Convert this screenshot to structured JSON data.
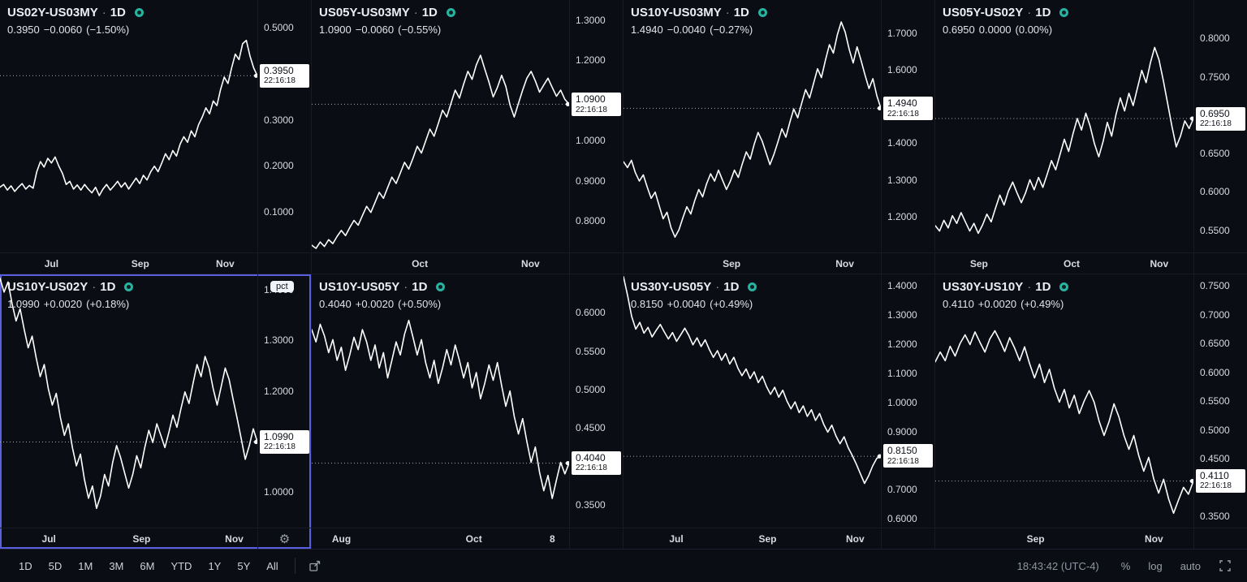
{
  "toolbar": {
    "ranges": [
      "1D",
      "5D",
      "1M",
      "3M",
      "6M",
      "YTD",
      "1Y",
      "5Y",
      "All"
    ],
    "clock": "18:43:42 (UTC-4)",
    "percent": "%",
    "log": "log",
    "auto": "auto"
  },
  "colors": {
    "background": "#0b0d14",
    "line": "#ffffff",
    "dashed_price_line": "#a9acb3",
    "panel_border": "#181b24",
    "selected_border": "#5a5ee0",
    "status_dot": "#27b3a2",
    "price_label_bg": "#ffffff",
    "price_label_text": "#10131a",
    "axis_text": "#d8dbe0"
  },
  "chart_data": [
    {
      "type": "line",
      "symbol": "US02Y-US03MY",
      "interval": "1D",
      "last_value": "0.3950",
      "change": "−0.0060",
      "change_pct": "(−1.50%)",
      "price_label": {
        "price": "0.3950",
        "time": "22:16:18"
      },
      "selected": false,
      "y_axis": {
        "min": 0.01,
        "max": 0.56,
        "ticks": [
          {
            "value": 0.5,
            "label": "0.5000"
          },
          {
            "value": 0.3,
            "label": "0.3000"
          },
          {
            "value": 0.2,
            "label": "0.2000"
          },
          {
            "value": 0.1,
            "label": "0.1000"
          }
        ]
      },
      "x_ticks": [
        {
          "pos": 0.2,
          "label": "Jul"
        },
        {
          "pos": 0.545,
          "label": "Sep"
        },
        {
          "pos": 0.875,
          "label": "Nov"
        }
      ],
      "series": [
        0.152,
        0.158,
        0.146,
        0.155,
        0.143,
        0.152,
        0.16,
        0.148,
        0.156,
        0.15,
        0.186,
        0.208,
        0.196,
        0.215,
        0.205,
        0.218,
        0.198,
        0.182,
        0.158,
        0.165,
        0.148,
        0.157,
        0.146,
        0.158,
        0.148,
        0.14,
        0.152,
        0.134,
        0.148,
        0.158,
        0.146,
        0.155,
        0.165,
        0.152,
        0.162,
        0.148,
        0.16,
        0.172,
        0.16,
        0.178,
        0.168,
        0.186,
        0.198,
        0.186,
        0.205,
        0.225,
        0.212,
        0.232,
        0.22,
        0.246,
        0.262,
        0.25,
        0.275,
        0.262,
        0.288,
        0.305,
        0.325,
        0.312,
        0.34,
        0.33,
        0.365,
        0.392,
        0.378,
        0.412,
        0.442,
        0.43,
        0.465,
        0.472,
        0.438,
        0.412,
        0.395
      ]
    },
    {
      "type": "line",
      "symbol": "US05Y-US03MY",
      "interval": "1D",
      "last_value": "1.0900",
      "change": "−0.0060",
      "change_pct": "(−0.55%)",
      "price_label": {
        "price": "1.0900",
        "time": "22:16:18"
      },
      "selected": false,
      "y_axis": {
        "min": 0.72,
        "max": 1.35,
        "ticks": [
          {
            "value": 1.3,
            "label": "1.3000"
          },
          {
            "value": 1.2,
            "label": "1.2000"
          },
          {
            "value": 1.0,
            "label": "1.0000"
          },
          {
            "value": 0.9,
            "label": "0.9000"
          },
          {
            "value": 0.8,
            "label": "0.8000"
          }
        ]
      },
      "x_ticks": [
        {
          "pos": 0.42,
          "label": "Oct"
        },
        {
          "pos": 0.85,
          "label": "Nov"
        }
      ],
      "series": [
        0.738,
        0.73,
        0.746,
        0.735,
        0.752,
        0.742,
        0.76,
        0.775,
        0.762,
        0.782,
        0.8,
        0.788,
        0.812,
        0.835,
        0.82,
        0.845,
        0.87,
        0.855,
        0.882,
        0.908,
        0.892,
        0.918,
        0.945,
        0.928,
        0.955,
        0.985,
        0.968,
        0.998,
        1.028,
        1.01,
        1.042,
        1.075,
        1.058,
        1.092,
        1.125,
        1.105,
        1.14,
        1.172,
        1.152,
        1.188,
        1.212,
        1.178,
        1.145,
        1.108,
        1.132,
        1.162,
        1.135,
        1.088,
        1.058,
        1.092,
        1.125,
        1.155,
        1.172,
        1.148,
        1.12,
        1.138,
        1.155,
        1.132,
        1.11,
        1.125,
        1.102,
        1.09
      ]
    },
    {
      "type": "line",
      "symbol": "US10Y-US03MY",
      "interval": "1D",
      "last_value": "1.4940",
      "change": "−0.0040",
      "change_pct": "(−0.27%)",
      "price_label": {
        "price": "1.4940",
        "time": "22:16:18"
      },
      "selected": false,
      "y_axis": {
        "min": 1.1,
        "max": 1.79,
        "ticks": [
          {
            "value": 1.7,
            "label": "1.7000"
          },
          {
            "value": 1.6,
            "label": "1.6000"
          },
          {
            "value": 1.4,
            "label": "1.4000"
          },
          {
            "value": 1.3,
            "label": "1.3000"
          },
          {
            "value": 1.2,
            "label": "1.2000"
          }
        ]
      },
      "x_ticks": [
        {
          "pos": 0.42,
          "label": "Sep"
        },
        {
          "pos": 0.86,
          "label": "Nov"
        }
      ],
      "series": [
        1.348,
        1.332,
        1.352,
        1.318,
        1.295,
        1.312,
        1.278,
        1.248,
        1.265,
        1.228,
        1.192,
        1.21,
        1.168,
        1.142,
        1.162,
        1.195,
        1.225,
        1.205,
        1.242,
        1.272,
        1.252,
        1.288,
        1.315,
        1.295,
        1.325,
        1.298,
        1.272,
        1.295,
        1.325,
        1.305,
        1.342,
        1.375,
        1.355,
        1.395,
        1.428,
        1.405,
        1.372,
        1.34,
        1.368,
        1.402,
        1.438,
        1.415,
        1.455,
        1.492,
        1.468,
        1.508,
        1.545,
        1.522,
        1.562,
        1.602,
        1.578,
        1.625,
        1.668,
        1.645,
        1.695,
        1.73,
        1.702,
        1.655,
        1.618,
        1.662,
        1.625,
        1.585,
        1.548,
        1.575,
        1.528,
        1.494
      ]
    },
    {
      "type": "line",
      "symbol": "US05Y-US02Y",
      "interval": "1D",
      "last_value": "0.6950",
      "change": "0.0000",
      "change_pct": "(0.00%)",
      "price_label": {
        "price": "0.6950",
        "time": "22:16:18"
      },
      "selected": false,
      "y_axis": {
        "min": 0.52,
        "max": 0.85,
        "ticks": [
          {
            "value": 0.8,
            "label": "0.8000"
          },
          {
            "value": 0.75,
            "label": "0.7500"
          },
          {
            "value": 0.65,
            "label": "0.6500"
          },
          {
            "value": 0.6,
            "label": "0.6000"
          },
          {
            "value": 0.55,
            "label": "0.5500"
          }
        ]
      },
      "x_ticks": [
        {
          "pos": 0.17,
          "label": "Sep"
        },
        {
          "pos": 0.53,
          "label": "Oct"
        },
        {
          "pos": 0.87,
          "label": "Nov"
        }
      ],
      "series": [
        0.555,
        0.548,
        0.562,
        0.552,
        0.568,
        0.558,
        0.572,
        0.56,
        0.548,
        0.558,
        0.545,
        0.556,
        0.57,
        0.56,
        0.578,
        0.595,
        0.582,
        0.6,
        0.612,
        0.598,
        0.585,
        0.598,
        0.615,
        0.602,
        0.618,
        0.605,
        0.622,
        0.64,
        0.628,
        0.648,
        0.668,
        0.652,
        0.675,
        0.695,
        0.68,
        0.702,
        0.685,
        0.662,
        0.645,
        0.665,
        0.69,
        0.672,
        0.7,
        0.722,
        0.705,
        0.728,
        0.712,
        0.735,
        0.758,
        0.742,
        0.768,
        0.788,
        0.772,
        0.745,
        0.715,
        0.685,
        0.658,
        0.672,
        0.692,
        0.682,
        0.695
      ]
    },
    {
      "type": "line",
      "symbol": "US10Y-US02Y",
      "interval": "1D",
      "last_value": "1.0990",
      "change": "+0.0020",
      "change_pct": "(+0.18%)",
      "price_label": {
        "price": "1.0990",
        "time": "22:16:18"
      },
      "selected": true,
      "unit_badge": "pct",
      "corner_icon": "gear",
      "y_axis": {
        "min": 0.93,
        "max": 1.43,
        "ticks": [
          {
            "value": 1.4,
            "label": "1.4000"
          },
          {
            "value": 1.3,
            "label": "1.3000"
          },
          {
            "value": 1.2,
            "label": "1.2000"
          },
          {
            "value": 1.0,
            "label": "1.0000"
          }
        ]
      },
      "x_ticks": [
        {
          "pos": 0.19,
          "label": "Jul"
        },
        {
          "pos": 0.55,
          "label": "Sep"
        },
        {
          "pos": 0.91,
          "label": "Nov"
        }
      ],
      "series": [
        1.422,
        1.395,
        1.415,
        1.372,
        1.338,
        1.362,
        1.322,
        1.285,
        1.308,
        1.265,
        1.228,
        1.252,
        1.205,
        1.172,
        1.195,
        1.148,
        1.112,
        1.135,
        1.088,
        1.052,
        1.075,
        1.025,
        0.988,
        1.012,
        0.968,
        0.992,
        1.035,
        1.012,
        1.058,
        1.092,
        1.068,
        1.038,
        1.008,
        1.035,
        1.072,
        1.048,
        1.088,
        1.122,
        1.098,
        1.135,
        1.112,
        1.088,
        1.118,
        1.152,
        1.128,
        1.165,
        1.198,
        1.175,
        1.215,
        1.252,
        1.228,
        1.268,
        1.245,
        1.205,
        1.172,
        1.208,
        1.245,
        1.222,
        1.182,
        1.145,
        1.105,
        1.065,
        1.092,
        1.125,
        1.099
      ]
    },
    {
      "type": "line",
      "symbol": "US10Y-US05Y",
      "interval": "1D",
      "last_value": "0.4040",
      "change": "+0.0020",
      "change_pct": "(+0.50%)",
      "price_label": {
        "price": "0.4040",
        "time": "22:16:18"
      },
      "selected": false,
      "y_axis": {
        "min": 0.32,
        "max": 0.65,
        "ticks": [
          {
            "value": 0.6,
            "label": "0.6000"
          },
          {
            "value": 0.55,
            "label": "0.5500"
          },
          {
            "value": 0.5,
            "label": "0.5000"
          },
          {
            "value": 0.45,
            "label": "0.4500"
          },
          {
            "value": 0.35,
            "label": "0.3500"
          }
        ]
      },
      "x_ticks": [
        {
          "pos": 0.115,
          "label": "Aug"
        },
        {
          "pos": 0.63,
          "label": "Oct"
        },
        {
          "pos": 0.935,
          "label": "8"
        }
      ],
      "series": [
        0.578,
        0.562,
        0.585,
        0.57,
        0.548,
        0.565,
        0.538,
        0.555,
        0.525,
        0.545,
        0.568,
        0.552,
        0.578,
        0.562,
        0.538,
        0.558,
        0.528,
        0.548,
        0.515,
        0.538,
        0.562,
        0.545,
        0.572,
        0.59,
        0.568,
        0.545,
        0.565,
        0.535,
        0.515,
        0.538,
        0.508,
        0.528,
        0.552,
        0.532,
        0.558,
        0.538,
        0.515,
        0.535,
        0.502,
        0.522,
        0.488,
        0.508,
        0.532,
        0.512,
        0.535,
        0.505,
        0.478,
        0.498,
        0.465,
        0.442,
        0.462,
        0.432,
        0.405,
        0.425,
        0.392,
        0.368,
        0.388,
        0.358,
        0.382,
        0.405,
        0.39,
        0.404
      ]
    },
    {
      "type": "line",
      "symbol": "US30Y-US05Y",
      "interval": "1D",
      "last_value": "0.8150",
      "change": "+0.0040",
      "change_pct": "(+0.49%)",
      "price_label": {
        "price": "0.8150",
        "time": "22:16:18"
      },
      "selected": false,
      "y_axis": {
        "min": 0.57,
        "max": 1.44,
        "ticks": [
          {
            "value": 1.4,
            "label": "1.4000"
          },
          {
            "value": 1.3,
            "label": "1.3000"
          },
          {
            "value": 1.2,
            "label": "1.2000"
          },
          {
            "value": 1.1,
            "label": "1.1000"
          },
          {
            "value": 1.0,
            "label": "1.0000"
          },
          {
            "value": 0.9,
            "label": "0.9000"
          },
          {
            "value": 0.7,
            "label": "0.7000"
          },
          {
            "value": 0.6,
            "label": "0.6000"
          }
        ]
      },
      "x_ticks": [
        {
          "pos": 0.205,
          "label": "Jul"
        },
        {
          "pos": 0.56,
          "label": "Sep"
        },
        {
          "pos": 0.9,
          "label": "Nov"
        }
      ],
      "series": [
        1.432,
        1.368,
        1.295,
        1.252,
        1.275,
        1.238,
        1.258,
        1.225,
        1.248,
        1.268,
        1.242,
        1.218,
        1.24,
        1.21,
        1.232,
        1.255,
        1.23,
        1.198,
        1.222,
        1.192,
        1.215,
        1.182,
        1.155,
        1.178,
        1.145,
        1.168,
        1.132,
        1.155,
        1.118,
        1.092,
        1.115,
        1.082,
        1.105,
        1.068,
        1.09,
        1.055,
        1.028,
        1.052,
        1.018,
        1.042,
        1.005,
        0.978,
        1.002,
        0.965,
        0.988,
        0.952,
        0.975,
        0.938,
        0.962,
        0.925,
        0.898,
        0.922,
        0.885,
        0.858,
        0.882,
        0.845,
        0.818,
        0.788,
        0.755,
        0.722,
        0.748,
        0.782,
        0.808,
        0.815
      ]
    },
    {
      "type": "line",
      "symbol": "US30Y-US10Y",
      "interval": "1D",
      "last_value": "0.4110",
      "change": "+0.0020",
      "change_pct": "(+0.49%)",
      "price_label": {
        "price": "0.4110",
        "time": "22:16:18"
      },
      "selected": false,
      "y_axis": {
        "min": 0.33,
        "max": 0.77,
        "ticks": [
          {
            "value": 0.75,
            "label": "0.7500"
          },
          {
            "value": 0.7,
            "label": "0.7000"
          },
          {
            "value": 0.65,
            "label": "0.6500"
          },
          {
            "value": 0.6,
            "label": "0.6000"
          },
          {
            "value": 0.55,
            "label": "0.5500"
          },
          {
            "value": 0.5,
            "label": "0.5000"
          },
          {
            "value": 0.45,
            "label": "0.4500"
          },
          {
            "value": 0.35,
            "label": "0.3500"
          }
        ]
      },
      "x_ticks": [
        {
          "pos": 0.39,
          "label": "Sep"
        },
        {
          "pos": 0.85,
          "label": "Nov"
        }
      ],
      "series": [
        0.618,
        0.635,
        0.62,
        0.645,
        0.628,
        0.65,
        0.665,
        0.648,
        0.67,
        0.652,
        0.635,
        0.658,
        0.672,
        0.655,
        0.636,
        0.66,
        0.642,
        0.62,
        0.644,
        0.615,
        0.59,
        0.614,
        0.582,
        0.605,
        0.572,
        0.548,
        0.57,
        0.538,
        0.56,
        0.528,
        0.55,
        0.568,
        0.548,
        0.515,
        0.49,
        0.514,
        0.545,
        0.522,
        0.49,
        0.466,
        0.49,
        0.455,
        0.428,
        0.452,
        0.415,
        0.39,
        0.414,
        0.38,
        0.355,
        0.378,
        0.4,
        0.388,
        0.411
      ]
    }
  ]
}
